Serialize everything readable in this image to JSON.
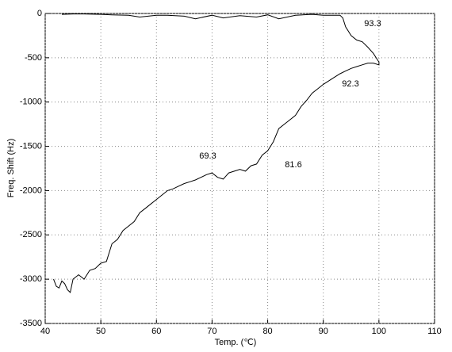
{
  "chart_data": {
    "type": "line",
    "xlabel": "Temp. (℃)",
    "ylabel": "Freq. Shift (Hz)",
    "xlim": [
      40,
      110
    ],
    "xticks": [
      40,
      50,
      60,
      70,
      80,
      90,
      100,
      110
    ],
    "ylim": [
      -3500,
      0
    ],
    "yticks": [
      -3500,
      -3000,
      -2500,
      -2000,
      -1500,
      -1000,
      -500,
      0
    ],
    "grid": true,
    "series": [
      {
        "color": "#000000",
        "x": [
          41.5,
          42,
          42.5,
          43,
          43.5,
          44,
          44.5,
          45,
          46,
          47,
          48,
          49,
          50,
          51,
          52,
          53,
          54,
          55,
          56,
          57,
          58,
          59,
          60,
          61,
          62,
          63,
          64,
          65,
          66,
          67,
          68,
          69,
          70,
          71,
          72,
          73,
          74,
          75,
          76,
          77,
          78,
          79,
          80,
          81,
          82,
          83,
          84,
          85,
          86,
          87,
          88,
          89,
          90,
          91,
          92,
          93,
          94,
          95,
          96,
          97,
          98,
          99,
          100,
          100,
          99,
          98,
          97,
          96,
          95,
          94,
          93.5,
          93,
          90,
          88,
          85,
          82,
          80,
          78,
          75,
          72,
          70,
          67,
          65,
          62,
          60,
          57,
          55,
          52,
          50,
          47,
          45,
          43
        ],
        "values": [
          -3000,
          -3080,
          -3100,
          -3020,
          -3050,
          -3120,
          -3150,
          -3000,
          -2950,
          -3000,
          -2900,
          -2880,
          -2820,
          -2800,
          -2600,
          -2550,
          -2450,
          -2400,
          -2350,
          -2250,
          -2200,
          -2150,
          -2100,
          -2050,
          -2000,
          -1980,
          -1950,
          -1920,
          -1900,
          -1880,
          -1850,
          -1820,
          -1800,
          -1850,
          -1870,
          -1800,
          -1780,
          -1760,
          -1780,
          -1720,
          -1700,
          -1600,
          -1550,
          -1450,
          -1300,
          -1250,
          -1200,
          -1150,
          -1050,
          -980,
          -900,
          -850,
          -800,
          -760,
          -720,
          -680,
          -650,
          -620,
          -600,
          -580,
          -560,
          -560,
          -580,
          -550,
          -450,
          -380,
          -320,
          -300,
          -250,
          -150,
          -50,
          -20,
          -20,
          -10,
          -20,
          -60,
          -15,
          -40,
          -25,
          -50,
          -20,
          -60,
          -30,
          -20,
          -20,
          -40,
          -20,
          -15,
          -10,
          -5,
          -5,
          -10
        ]
      }
    ],
    "annotations": [
      "93.3",
      "92.3",
      "69.3",
      "81.6"
    ]
  }
}
